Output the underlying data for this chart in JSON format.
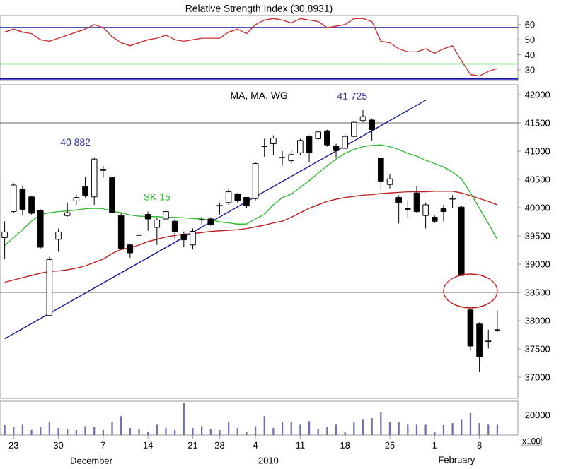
{
  "chart_data": [
    {
      "type": "line",
      "title": "Relative Strength Index (30,8931)",
      "categories": [
        null,
        null,
        null,
        null,
        null,
        null,
        null,
        null,
        null,
        null,
        null,
        null,
        null,
        null,
        null,
        null,
        null,
        null,
        null,
        null,
        null,
        null,
        null,
        null,
        null,
        null,
        null,
        null,
        null,
        null,
        null,
        null,
        null,
        null,
        null,
        null,
        null,
        null,
        null,
        null,
        null,
        null,
        null,
        null,
        null,
        null,
        null,
        null,
        null,
        null,
        null,
        null,
        null,
        null,
        null,
        null
      ],
      "values": [
        55,
        57,
        55,
        54,
        50,
        49,
        51,
        53,
        55,
        57,
        60,
        58,
        52,
        48,
        46,
        48,
        50,
        51,
        53,
        50,
        49,
        50,
        51,
        51,
        51,
        55,
        57,
        54,
        60,
        63,
        64,
        63,
        61,
        64,
        63,
        62,
        58,
        59,
        60,
        64,
        64,
        62,
        49,
        48,
        44,
        42,
        42,
        44,
        41,
        44,
        46,
        36,
        27,
        26,
        29,
        31
      ],
      "color": "#cc3333",
      "ylim": [
        23,
        66
      ],
      "yticks": [
        30,
        40,
        50,
        60
      ],
      "ref_lines": [
        {
          "axis": "y",
          "value": 58,
          "color": "#1a1aa6"
        },
        {
          "axis": "y",
          "value": 34,
          "color": "#33cc33"
        },
        {
          "axis": "y",
          "value": 24,
          "color": "#1a1aa6"
        }
      ],
      "tick_labels": "y"
    },
    {
      "type": "candlestick",
      "categories": [
        null,
        null,
        null,
        null,
        null,
        null,
        null,
        null,
        null,
        null,
        null,
        null,
        null,
        null,
        null,
        null,
        null,
        null,
        null,
        null,
        null,
        null,
        null,
        null,
        null,
        null,
        null,
        null,
        null,
        null,
        null,
        null,
        null,
        null,
        null,
        null,
        null,
        null,
        null,
        null,
        null,
        null,
        null,
        null,
        null,
        null,
        null,
        null,
        null,
        null,
        null,
        null,
        null,
        null,
        null,
        null
      ],
      "ohlc": [
        [
          39470,
          39760,
          39090,
          39570
        ],
        [
          39930,
          40430,
          39910,
          40400
        ],
        [
          40330,
          40380,
          39860,
          39970
        ],
        [
          40190,
          40210,
          39880,
          39900
        ],
        [
          39950,
          39970,
          39280,
          39300
        ],
        [
          38090,
          39130,
          38090,
          39080
        ],
        [
          39440,
          39630,
          39220,
          39570
        ],
        [
          39860,
          40090,
          39840,
          39910
        ],
        [
          40120,
          40230,
          40050,
          40180
        ],
        [
          40370,
          40550,
          40180,
          40220
        ],
        [
          40190,
          40882,
          40050,
          40860
        ],
        [
          40680,
          40740,
          40530,
          40660
        ],
        [
          40530,
          40690,
          39880,
          39910
        ],
        [
          39860,
          39910,
          39260,
          39280
        ],
        [
          39340,
          39360,
          39110,
          39200
        ],
        [
          39520,
          39590,
          39300,
          39510
        ],
        [
          39880,
          39930,
          39590,
          39800
        ],
        [
          39650,
          39820,
          39340,
          39780
        ],
        [
          39800,
          39990,
          39760,
          39930
        ],
        [
          39760,
          39800,
          39440,
          39570
        ],
        [
          39530,
          39580,
          39300,
          39430
        ],
        [
          39340,
          39630,
          39260,
          39580
        ],
        [
          39780,
          39840,
          39700,
          39790
        ],
        [
          39800,
          39830,
          39680,
          39700
        ],
        [
          40030,
          40090,
          39880,
          40040
        ],
        [
          40090,
          40330,
          40050,
          40280
        ],
        [
          40240,
          40260,
          40090,
          40120
        ],
        [
          40180,
          40190,
          39990,
          40030
        ],
        [
          40160,
          40800,
          40130,
          40780
        ],
        [
          41080,
          41220,
          40900,
          41090
        ],
        [
          41130,
          41280,
          40930,
          41230
        ],
        [
          40880,
          41000,
          40740,
          40890
        ],
        [
          40830,
          41010,
          40780,
          40940
        ],
        [
          40970,
          41220,
          40930,
          41190
        ],
        [
          41260,
          41280,
          40800,
          40970
        ],
        [
          41220,
          41360,
          41190,
          41340
        ],
        [
          41360,
          41380,
          41080,
          41110
        ],
        [
          41090,
          41130,
          40880,
          41010
        ],
        [
          41050,
          41300,
          41010,
          41260
        ],
        [
          41260,
          41550,
          41220,
          41510
        ],
        [
          41540,
          41725,
          41510,
          41610
        ],
        [
          41550,
          41580,
          41180,
          41380
        ],
        [
          40880,
          40880,
          40340,
          40470
        ],
        [
          40410,
          40590,
          40340,
          40510
        ],
        [
          40180,
          40220,
          39720,
          40090
        ],
        [
          39990,
          40130,
          39820,
          39970
        ],
        [
          40260,
          40380,
          39910,
          39930
        ],
        [
          39860,
          40090,
          39630,
          40050
        ],
        [
          39830,
          39860,
          39730,
          39760
        ],
        [
          39980,
          40050,
          39760,
          39930
        ],
        [
          40150,
          40220,
          39990,
          40160
        ],
        [
          40010,
          40030,
          38800,
          38800
        ],
        [
          38190,
          38220,
          37470,
          37550
        ],
        [
          37940,
          37970,
          37100,
          37360
        ],
        [
          37630,
          37840,
          37510,
          37640
        ],
        [
          37830,
          38180,
          37800,
          37840
        ]
      ],
      "series": [
        {
          "type": "line",
          "name": "SK 15",
          "color": "#33bb33",
          "values": [
            39330,
            39470,
            39610,
            39760,
            39880,
            39910,
            39930,
            39940,
            39960,
            39980,
            39990,
            39980,
            39940,
            39910,
            39870,
            39850,
            39840,
            39840,
            39830,
            39830,
            39820,
            39810,
            39800,
            39780,
            39750,
            39730,
            39710,
            39710,
            39800,
            39880,
            40050,
            40180,
            40240,
            40360,
            40480,
            40610,
            40740,
            40860,
            40960,
            41030,
            41080,
            41100,
            41110,
            41080,
            41030,
            40960,
            40910,
            40840,
            40780,
            40720,
            40630,
            40510,
            40260,
            39990,
            39720,
            39440
          ]
        },
        {
          "type": "line",
          "color": "#bb2222",
          "values": [
            38680,
            38720,
            38760,
            38800,
            38840,
            38870,
            38880,
            38900,
            38930,
            38970,
            39030,
            39090,
            39190,
            39260,
            39290,
            39340,
            39400,
            39440,
            39480,
            39510,
            39530,
            39540,
            39560,
            39580,
            39590,
            39600,
            39610,
            39630,
            39660,
            39690,
            39730,
            39760,
            39830,
            39910,
            39990,
            40050,
            40110,
            40150,
            40180,
            40200,
            40220,
            40230,
            40250,
            40260,
            40270,
            40280,
            40280,
            40280,
            40290,
            40290,
            40290,
            40260,
            40210,
            40160,
            40110,
            40050
          ]
        },
        {
          "type": "line",
          "color": "#1a1a99",
          "values": [
            37680,
            null,
            null,
            null,
            null,
            null,
            null,
            null,
            null,
            null,
            null,
            null,
            null,
            null,
            null,
            null,
            null,
            null,
            null,
            null,
            null,
            null,
            null,
            null,
            null,
            null,
            null,
            null,
            null,
            null,
            null,
            null,
            null,
            null,
            null,
            null,
            null,
            null,
            null,
            null,
            null,
            null,
            null,
            null,
            null,
            null,
            null,
            41900,
            null,
            null,
            null,
            null,
            null,
            null,
            null,
            null
          ]
        }
      ],
      "ylim": [
        36625,
        42175
      ],
      "yticks": [
        37000,
        37500,
        38000,
        38500,
        39000,
        39500,
        40000,
        40500,
        41000,
        41500,
        42000
      ],
      "ref_lines": [
        {
          "axis": "y",
          "value": 41500,
          "color": "#999999"
        },
        {
          "axis": "y",
          "value": 38500,
          "color": "#999999"
        }
      ],
      "annotations": [
        "MA, MA, WG",
        "40 882",
        "41 725"
      ],
      "tick_labels": "y"
    },
    {
      "type": "bar",
      "categories": [
        null,
        "23",
        null,
        null,
        null,
        null,
        "30",
        null,
        null,
        null,
        null,
        "7",
        null,
        null,
        null,
        null,
        "14",
        null,
        null,
        null,
        null,
        "21",
        null,
        null,
        "28",
        null,
        null,
        null,
        "4",
        null,
        null,
        null,
        null,
        "11",
        null,
        null,
        null,
        null,
        "18",
        null,
        null,
        null,
        null,
        "25",
        null,
        null,
        null,
        null,
        "1",
        null,
        null,
        null,
        null,
        "8",
        null,
        null
      ],
      "values": [
        10000,
        8000,
        11000,
        5000,
        8000,
        13000,
        7000,
        6000,
        5000,
        9000,
        8000,
        5000,
        13000,
        19000,
        7000,
        6000,
        3000,
        11000,
        7000,
        5000,
        32000,
        7000,
        9000,
        6000,
        5000,
        13000,
        7000,
        3000,
        9000,
        19000,
        7000,
        13000,
        13000,
        11000,
        14000,
        6000,
        8000,
        11000,
        3000,
        13000,
        16000,
        17000,
        23000,
        13000,
        13000,
        11000,
        11000,
        11000,
        3000,
        10000,
        12000,
        16000,
        22000,
        12000,
        11000,
        11000
      ],
      "color": "#7070b0",
      "ylim": [
        0,
        34000
      ],
      "yticks": [
        20000
      ],
      "ylabel": "x100",
      "annotations": [
        "December",
        "2010",
        "February"
      ]
    }
  ]
}
